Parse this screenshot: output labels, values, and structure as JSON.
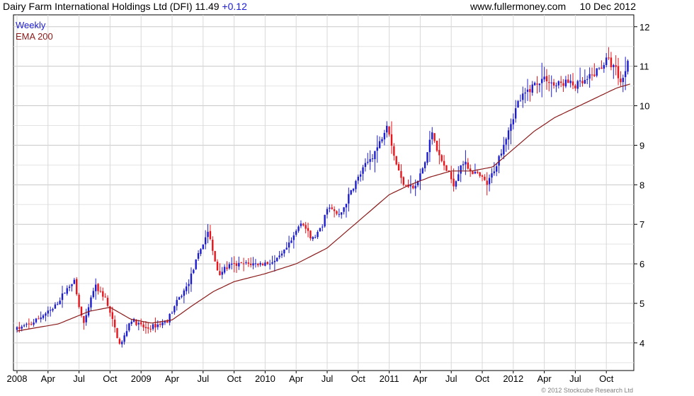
{
  "header": {
    "title": "Dairy Farm International Holdings Ltd (DFI)",
    "price": "11.49",
    "change": "+0.12",
    "source": "www.fullermoney.com",
    "date": "10 Dec 2012"
  },
  "legend": [
    {
      "label": "Weekly",
      "color": "#1c1cd0"
    },
    {
      "label": "EMA 200",
      "color": "#8b1a1a"
    }
  ],
  "copyright": "© 2012 Stockcube Research Ltd",
  "chart_data": {
    "type": "candlestick",
    "frequency": "weekly",
    "x_start": "2008-01-01",
    "x_end": "2012-12-10",
    "ylim": [
      3.3,
      12.3
    ],
    "y_ticks": [
      4,
      5,
      6,
      7,
      8,
      9,
      10,
      11,
      12
    ],
    "x_tick_labels": [
      "2008",
      "Apr",
      "Jul",
      "Oct",
      "2009",
      "Apr",
      "Jul",
      "Oct",
      "2010",
      "Apr",
      "Jul",
      "Oct",
      "2011",
      "Apr",
      "Jul",
      "Oct",
      "2012",
      "Apr",
      "Jul",
      "Oct"
    ],
    "x_tick_positions": [
      0,
      3,
      6,
      9,
      12,
      15,
      18,
      21,
      24,
      27,
      30,
      33,
      36,
      39,
      42,
      45,
      48,
      51,
      54,
      57
    ],
    "grid": true,
    "legend_position": "top-left",
    "up_color": "#1c1cd0",
    "down_color": "#e8141c",
    "ema_color": "#8b1a1a",
    "price_anchors": [
      [
        0,
        4.35
      ],
      [
        1.5,
        4.5
      ],
      [
        2.5,
        4.7
      ],
      [
        3.5,
        4.85
      ],
      [
        4.5,
        5.25
      ],
      [
        5.5,
        5.6
      ],
      [
        6,
        4.9
      ],
      [
        6.5,
        4.45
      ],
      [
        7.5,
        5.45
      ],
      [
        8.5,
        5.15
      ],
      [
        9.3,
        4.5
      ],
      [
        10,
        3.9
      ],
      [
        11,
        4.6
      ],
      [
        12.5,
        4.35
      ],
      [
        13.5,
        4.45
      ],
      [
        14.5,
        4.55
      ],
      [
        15.5,
        5.05
      ],
      [
        16.5,
        5.45
      ],
      [
        17.5,
        6.2
      ],
      [
        18.5,
        6.85
      ],
      [
        19,
        6.2
      ],
      [
        19.5,
        5.75
      ],
      [
        20.5,
        5.95
      ],
      [
        22,
        6.0
      ],
      [
        23.5,
        6.0
      ],
      [
        25,
        6.05
      ],
      [
        25.7,
        6.25
      ],
      [
        26.5,
        6.55
      ],
      [
        27.5,
        7.1
      ],
      [
        28.5,
        6.6
      ],
      [
        29.5,
        6.9
      ],
      [
        30,
        7.45
      ],
      [
        31.2,
        7.2
      ],
      [
        32.5,
        7.95
      ],
      [
        33.5,
        8.4
      ],
      [
        35,
        9.0
      ],
      [
        35.8,
        9.6
      ],
      [
        36.5,
        8.7
      ],
      [
        37.2,
        8.1
      ],
      [
        38.5,
        7.9
      ],
      [
        39.5,
        8.6
      ],
      [
        40.2,
        9.4
      ],
      [
        40.8,
        8.7
      ],
      [
        41.5,
        8.4
      ],
      [
        42.3,
        8.0
      ],
      [
        43,
        8.6
      ],
      [
        44,
        8.35
      ],
      [
        45,
        8.15
      ],
      [
        45.5,
        8.0
      ],
      [
        46.5,
        8.6
      ],
      [
        47.5,
        9.4
      ],
      [
        48.5,
        10.1
      ],
      [
        49.5,
        10.4
      ],
      [
        50.5,
        10.65
      ],
      [
        51.2,
        10.7
      ],
      [
        52,
        10.5
      ],
      [
        53,
        10.6
      ],
      [
        54,
        10.5
      ],
      [
        55,
        10.6
      ],
      [
        56,
        10.85
      ],
      [
        57,
        11.15
      ],
      [
        57.8,
        11.0
      ],
      [
        58.5,
        10.55
      ],
      [
        59.3,
        11.45
      ]
    ],
    "ema_anchors": [
      [
        0,
        4.3
      ],
      [
        4,
        4.48
      ],
      [
        7,
        4.8
      ],
      [
        9,
        4.9
      ],
      [
        11,
        4.6
      ],
      [
        13,
        4.5
      ],
      [
        15,
        4.58
      ],
      [
        17,
        4.95
      ],
      [
        19,
        5.3
      ],
      [
        21,
        5.55
      ],
      [
        24,
        5.75
      ],
      [
        27,
        6.0
      ],
      [
        30,
        6.4
      ],
      [
        32,
        6.85
      ],
      [
        34,
        7.3
      ],
      [
        36,
        7.75
      ],
      [
        38,
        8.0
      ],
      [
        40,
        8.2
      ],
      [
        42,
        8.35
      ],
      [
        44,
        8.35
      ],
      [
        46,
        8.45
      ],
      [
        48,
        8.9
      ],
      [
        50,
        9.35
      ],
      [
        52,
        9.7
      ],
      [
        54,
        9.95
      ],
      [
        56,
        10.2
      ],
      [
        58,
        10.45
      ],
      [
        59.3,
        10.55
      ]
    ]
  }
}
